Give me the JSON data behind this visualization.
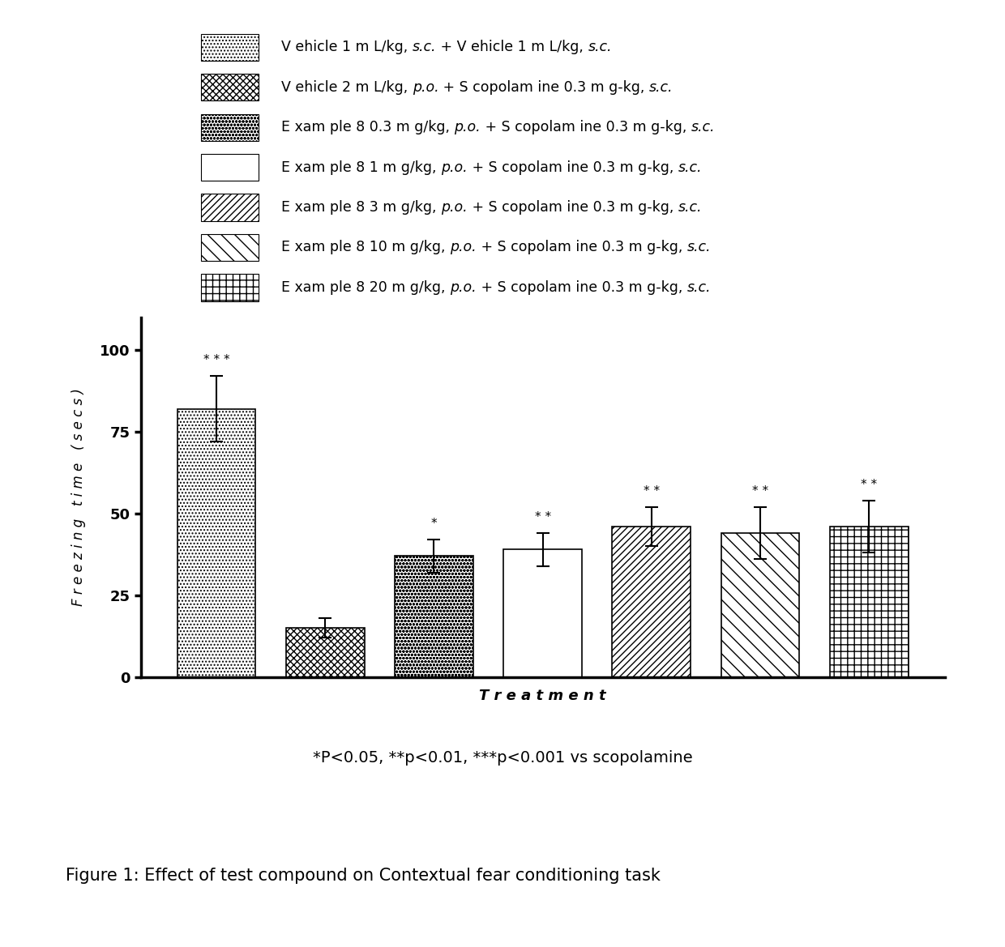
{
  "bar_values": [
    82,
    15,
    37,
    39,
    46,
    44,
    46
  ],
  "bar_errors": [
    10,
    3,
    5,
    5,
    6,
    8,
    8
  ],
  "significance": [
    "***",
    "",
    "*",
    "**",
    "**",
    "**",
    "**"
  ],
  "hatch_patterns_bar": [
    "....",
    "////",
    "oooo",
    "=====",
    "-----",
    "\\\\\\\\",
    "++"
  ],
  "ylabel": "F r e e z i n g   t i m e   ( s e c s )",
  "xlabel": "T r e a t m e n t",
  "ylim": [
    0,
    110
  ],
  "yticks": [
    0,
    25,
    50,
    75,
    100
  ],
  "legend_parts": [
    [
      [
        "V ehicle 1 m L/kg, ",
        false
      ],
      [
        "s.c.",
        true
      ],
      [
        " + V ehicle 1 m L/kg, ",
        false
      ],
      [
        "s.c.",
        true
      ]
    ],
    [
      [
        "V ehicle 2 m L/kg, ",
        false
      ],
      [
        "p.o.",
        true
      ],
      [
        " + S copolam ine 0.3 m g-kg, ",
        false
      ],
      [
        "s.c.",
        true
      ]
    ],
    [
      [
        "E xam ple 8 0.3 m g/kg, ",
        false
      ],
      [
        "p.o.",
        true
      ],
      [
        " + S copolam ine 0.3 m g-kg, ",
        false
      ],
      [
        "s.c.",
        true
      ]
    ],
    [
      [
        "E xam ple 8 1 m g/kg, ",
        false
      ],
      [
        "p.o.",
        true
      ],
      [
        " + S copolam ine 0.3 m g-kg, ",
        false
      ],
      [
        "s.c.",
        true
      ]
    ],
    [
      [
        "E xam ple 8 3 m g/kg, ",
        false
      ],
      [
        "p.o.",
        true
      ],
      [
        " + S copolam ine 0.3 m g-kg, ",
        false
      ],
      [
        "s.c.",
        true
      ]
    ],
    [
      [
        "E xam ple 8 10 m g/kg, ",
        false
      ],
      [
        "p.o.",
        true
      ],
      [
        " + S copolam ine 0.3 m g-kg, ",
        false
      ],
      [
        "s.c.",
        true
      ]
    ],
    [
      [
        "E xam ple 8 20 m g/kg, ",
        false
      ],
      [
        "p.o.",
        true
      ],
      [
        " + S copolam ine 0.3 m g-kg, ",
        false
      ],
      [
        "s.c.",
        true
      ]
    ]
  ],
  "hatch_patterns_legend": [
    "....",
    "////",
    "oooo",
    "=====",
    "-----",
    "\\\\\\\\",
    "++"
  ],
  "footnote": "*P<0.05, **p<0.01, ***p<0.001 vs scopolamine",
  "figure_title": "Figure 1: Effect of test compound on Contextual fear conditioning task"
}
